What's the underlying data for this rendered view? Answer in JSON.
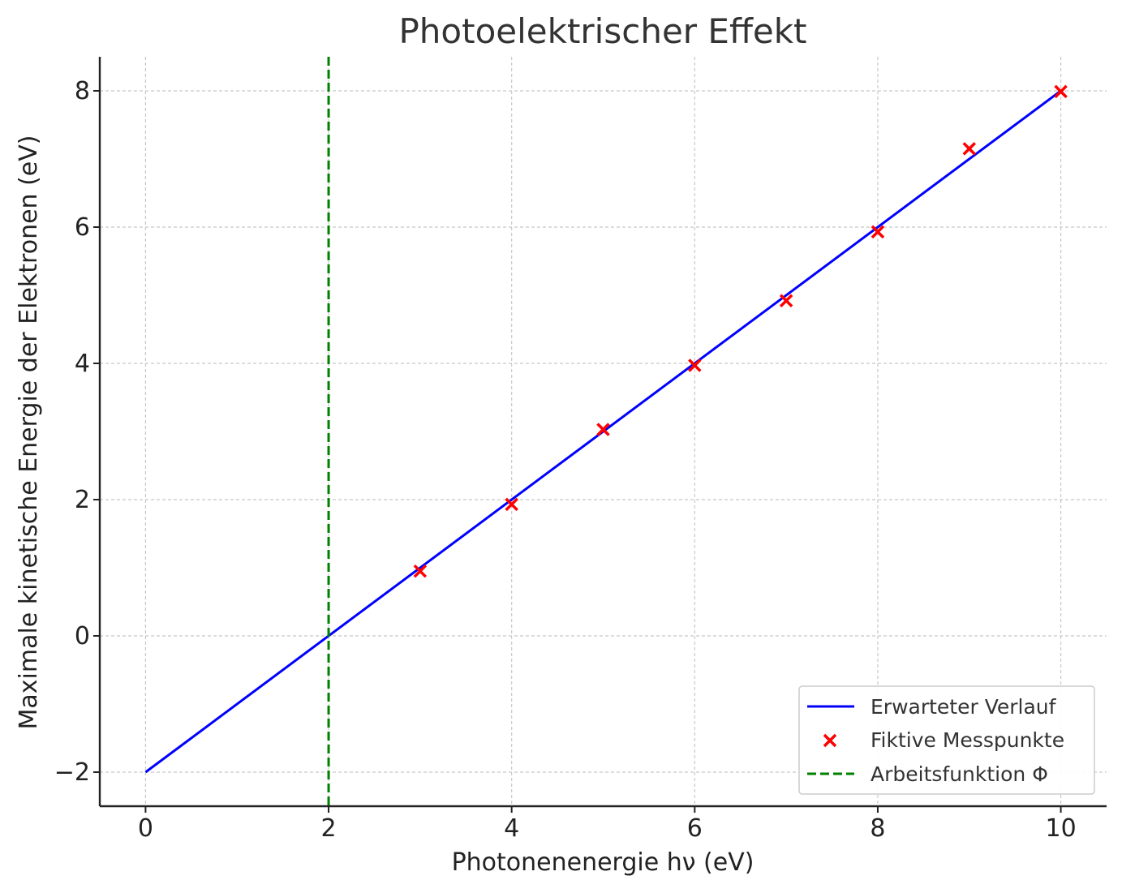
{
  "chart_data": {
    "type": "line",
    "title": "Photoelektrischer Effekt",
    "xlabel": "Photonenenergie hν (eV)",
    "ylabel": "Maximale kinetische Energie der Elektronen (eV)",
    "xlim": [
      -0.5,
      10.5
    ],
    "ylim": [
      -2.5,
      8.5
    ],
    "x_ticks": [
      0,
      2,
      4,
      6,
      8,
      10
    ],
    "x_tick_labels": [
      "0",
      "2",
      "4",
      "6",
      "8",
      "10"
    ],
    "y_ticks": [
      -2,
      0,
      2,
      4,
      6,
      8
    ],
    "y_tick_labels": [
      "−2",
      "0",
      "2",
      "4",
      "6",
      "8"
    ],
    "grid": true,
    "legend_position": "bottom-right",
    "series": [
      {
        "name": "Erwarteter Verlauf",
        "kind": "line",
        "color": "#0000ff",
        "x": [
          0,
          10
        ],
        "y": [
          -2,
          8
        ]
      },
      {
        "name": "Fiktive Messpunkte",
        "kind": "scatter",
        "marker": "x",
        "color": "#ff0000",
        "x": [
          3,
          4,
          5,
          6,
          7,
          8,
          9,
          10
        ],
        "y": [
          0.95,
          1.93,
          3.03,
          3.97,
          4.92,
          5.93,
          7.15,
          7.99
        ]
      },
      {
        "name": "Arbeitsfunktion Φ",
        "kind": "vline",
        "style": "dashed",
        "color": "#008000",
        "x": 2
      }
    ]
  }
}
